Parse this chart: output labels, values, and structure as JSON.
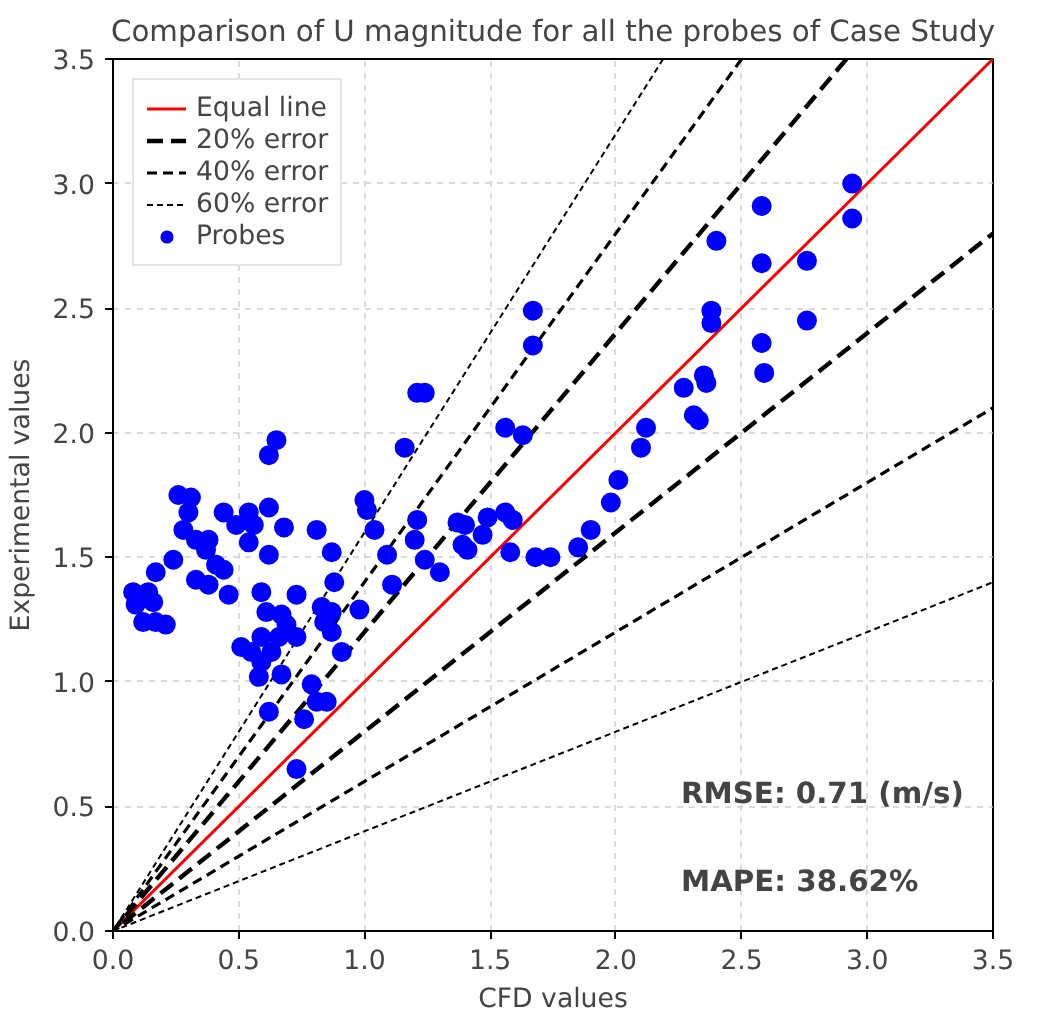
{
  "chart_data": {
    "type": "scatter",
    "title": "Comparison of U magnitude for all the probes of Case Study",
    "xlabel": "CFD values",
    "ylabel": "Experimental values",
    "xlim": [
      0,
      3.5
    ],
    "ylim": [
      0,
      3.5
    ],
    "xticks": [
      {
        "value": 0,
        "label": "0.0"
      },
      {
        "value": 0.5,
        "label": "0.5"
      },
      {
        "value": 1,
        "label": "1.0"
      },
      {
        "value": 1.5,
        "label": "1.5"
      },
      {
        "value": 2,
        "label": "2.0"
      },
      {
        "value": 2.5,
        "label": "2.5"
      },
      {
        "value": 3,
        "label": "3.0"
      },
      {
        "value": 3.5,
        "label": "3.5"
      }
    ],
    "yticks": [
      {
        "value": 0,
        "label": "0.0"
      },
      {
        "value": 0.5,
        "label": "0.5"
      },
      {
        "value": 1,
        "label": "1.0"
      },
      {
        "value": 1.5,
        "label": "1.5"
      },
      {
        "value": 2,
        "label": "2.0"
      },
      {
        "value": 2.5,
        "label": "2.5"
      },
      {
        "value": 3,
        "label": "3.0"
      },
      {
        "value": 3.5,
        "label": "3.5"
      }
    ],
    "grid": true,
    "legend": "top left",
    "series": [
      {
        "name": "Equal line",
        "type": "line",
        "color": "#ff0000",
        "line_style": "solid",
        "x": [
          0,
          3.5
        ],
        "values": [
          0,
          3.5
        ]
      },
      {
        "name": "20% error",
        "type": "line",
        "color": "#000000",
        "line_style": "dashed",
        "x": [
          2.917,
          0,
          3.5
        ],
        "values": [
          3.5,
          0,
          2.8
        ]
      },
      {
        "name": "40% error",
        "type": "line",
        "color": "#000000",
        "line_style": "dashed",
        "x": [
          2.5,
          0,
          3.5
        ],
        "values": [
          3.5,
          0,
          2.1
        ]
      },
      {
        "name": "60% error",
        "type": "line",
        "color": "#000000",
        "line_style": "dashed",
        "x": [
          2.188,
          0,
          3.5
        ],
        "values": [
          3.5,
          0,
          1.4
        ]
      },
      {
        "name": "Probes",
        "color": "#0000ff",
        "marker": "circle",
        "x": [
          0.08,
          0.09,
          0.14,
          0.16,
          0.12,
          0.17,
          0.21,
          0.17,
          0.24,
          0.26,
          0.31,
          0.3,
          0.28,
          0.33,
          0.38,
          0.37,
          0.33,
          0.38,
          0.41,
          0.44,
          0.44,
          0.49,
          0.54,
          0.56,
          0.54,
          0.62,
          0.68,
          0.62,
          0.65,
          0.62,
          0.46,
          0.59,
          0.61,
          0.67,
          0.73,
          0.81,
          0.87,
          0.51,
          0.55,
          0.59,
          0.63,
          0.66,
          0.69,
          0.73,
          0.58,
          0.67,
          0.59,
          0.83,
          0.84,
          0.87,
          0.87,
          0.88,
          0.91,
          0.98,
          0.62,
          0.76,
          0.79,
          0.81,
          0.85,
          0.73,
          1.11,
          1.09,
          1.0,
          1.01,
          1.04,
          1.16,
          1.21,
          1.24,
          1.2,
          1.21,
          1.24,
          1.3,
          2.94,
          2.94,
          2.58,
          2.58,
          2.76,
          2.76,
          2.4,
          2.38,
          2.38,
          2.58,
          2.59,
          2.35,
          2.36,
          2.27,
          2.31,
          2.33,
          2.12,
          2.1,
          2.01,
          1.98,
          1.9,
          1.85,
          1.74,
          1.68,
          1.58,
          1.56,
          1.59,
          1.49,
          1.47,
          1.56,
          1.63,
          1.67,
          1.67,
          1.37,
          1.4,
          1.39,
          1.41
        ],
        "values": [
          1.36,
          1.31,
          1.36,
          1.32,
          1.24,
          1.24,
          1.23,
          1.44,
          1.49,
          1.75,
          1.74,
          1.68,
          1.61,
          1.57,
          1.57,
          1.53,
          1.41,
          1.39,
          1.47,
          1.45,
          1.68,
          1.63,
          1.68,
          1.63,
          1.56,
          1.7,
          1.62,
          1.91,
          1.97,
          1.51,
          1.35,
          1.36,
          1.28,
          1.27,
          1.35,
          1.61,
          1.52,
          1.14,
          1.12,
          1.18,
          1.12,
          1.18,
          1.23,
          1.18,
          1.02,
          1.03,
          1.08,
          1.3,
          1.24,
          1.28,
          1.2,
          1.4,
          1.12,
          1.29,
          0.88,
          0.85,
          0.99,
          0.92,
          0.92,
          0.65,
          1.39,
          1.51,
          1.73,
          1.69,
          1.61,
          1.94,
          2.16,
          2.16,
          1.57,
          1.65,
          1.49,
          1.44,
          3.0,
          2.86,
          2.91,
          2.68,
          2.69,
          2.45,
          2.77,
          2.49,
          2.44,
          2.36,
          2.24,
          2.23,
          2.2,
          2.18,
          2.07,
          2.05,
          2.02,
          1.94,
          1.81,
          1.72,
          1.61,
          1.54,
          1.5,
          1.5,
          1.52,
          1.68,
          1.65,
          1.66,
          1.59,
          2.02,
          1.99,
          2.49,
          2.35,
          1.64,
          1.63,
          1.55,
          1.53
        ]
      }
    ],
    "annotations": [
      "RMSE: 0.71 (m/s)",
      "MAPE: 38.62%"
    ]
  }
}
